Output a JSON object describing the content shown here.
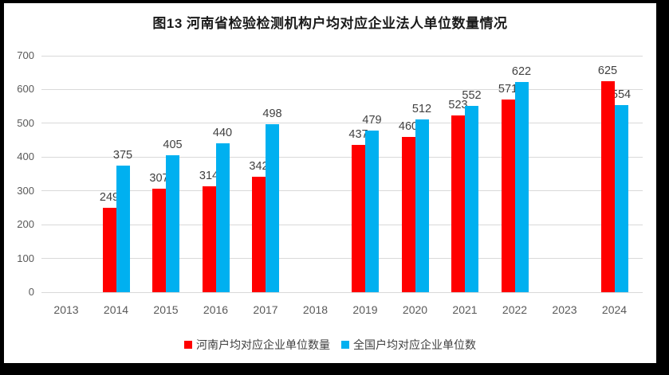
{
  "frame": {
    "border_color": "#000000",
    "chart_background": "#ffffff"
  },
  "title": "图13  河南省检验检测机构户均对应企业法人单位数量情况",
  "chart_data": {
    "type": "bar",
    "title": "图13  河南省检验检测机构户均对应企业法人单位数量情况",
    "categories": [
      "2013",
      "2014",
      "2015",
      "2016",
      "2017",
      "2018",
      "2019",
      "2020",
      "2021",
      "2022",
      "2023",
      "2024"
    ],
    "series": [
      {
        "name": "河南户均对应企业单位数量",
        "color": "#ff0000",
        "values": [
          null,
          249,
          307,
          314,
          342,
          null,
          437,
          460,
          523,
          571,
          null,
          625
        ]
      },
      {
        "name": "全国户均对应企业单位数",
        "color": "#00b0f0",
        "values": [
          null,
          375,
          405,
          440,
          498,
          null,
          479,
          512,
          552,
          622,
          null,
          554
        ]
      }
    ],
    "xlabel": "",
    "ylabel": "",
    "ylim": [
      0,
      700
    ],
    "yticks": [
      0,
      100,
      200,
      300,
      400,
      500,
      600,
      700
    ],
    "grid": "horizontal",
    "gridline_color": "#d9d9d9",
    "bar_labels": true,
    "legend_position": "bottom"
  },
  "colors": {
    "axis_label": "#595959",
    "data_label": "#404040",
    "gridline": "#d9d9d9",
    "title": "#1a1a1a",
    "series_henan": "#ff0000",
    "series_national": "#00b0f0"
  }
}
